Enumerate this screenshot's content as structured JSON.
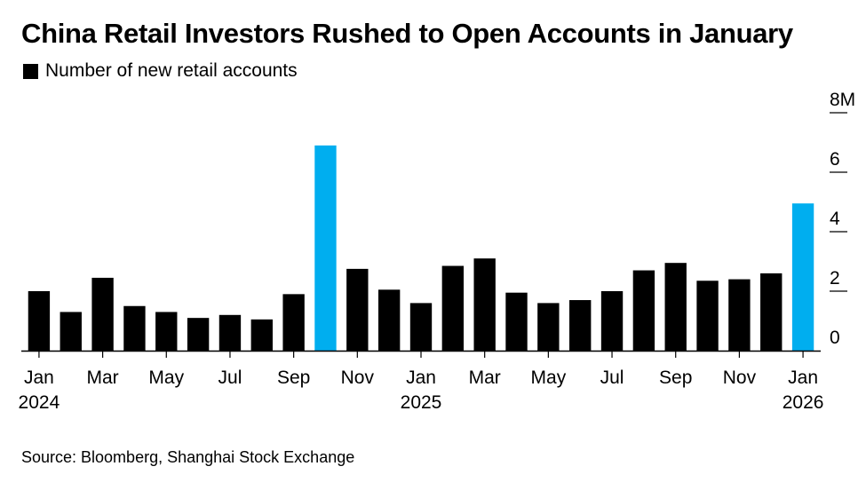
{
  "chart_data": {
    "type": "bar",
    "title": "China Retail Investors Rushed to Open Accounts in January",
    "legend": [
      "Number of new retail accounts"
    ],
    "xlabel": "",
    "ylabel": "",
    "ylim": [
      0,
      8
    ],
    "yticks": [
      {
        "value": 8,
        "label": "8M"
      },
      {
        "value": 6,
        "label": "6"
      },
      {
        "value": 4,
        "label": "4"
      },
      {
        "value": 2,
        "label": "2"
      },
      {
        "value": 0,
        "label": "0"
      }
    ],
    "categories": [
      "Jan 2024",
      "Feb 2024",
      "Mar 2024",
      "Apr 2024",
      "May 2024",
      "Jun 2024",
      "Jul 2024",
      "Aug 2024",
      "Sep 2024",
      "Oct 2024",
      "Nov 2024",
      "Dec 2024",
      "Jan 2025",
      "Feb 2025",
      "Mar 2025",
      "Apr 2025",
      "May 2025",
      "Jun 2025",
      "Jul 2025",
      "Aug 2025",
      "Sep 2025",
      "Oct 2025",
      "Nov 2025",
      "Dec 2025",
      "Jan 2026"
    ],
    "values": [
      2.0,
      1.3,
      2.45,
      1.5,
      1.3,
      1.1,
      1.2,
      1.05,
      1.9,
      6.9,
      2.75,
      2.05,
      1.6,
      2.85,
      3.1,
      1.95,
      1.6,
      1.7,
      2.0,
      2.7,
      2.95,
      2.35,
      2.4,
      2.6,
      4.95
    ],
    "highlight": [
      false,
      false,
      false,
      false,
      false,
      false,
      false,
      false,
      false,
      true,
      false,
      false,
      false,
      false,
      false,
      false,
      false,
      false,
      false,
      false,
      false,
      false,
      false,
      false,
      true
    ],
    "xtick_labels": [
      {
        "index": 0,
        "month": "Jan",
        "year": "2024"
      },
      {
        "index": 2,
        "month": "Mar",
        "year": ""
      },
      {
        "index": 4,
        "month": "May",
        "year": ""
      },
      {
        "index": 6,
        "month": "Jul",
        "year": ""
      },
      {
        "index": 8,
        "month": "Sep",
        "year": ""
      },
      {
        "index": 10,
        "month": "Nov",
        "year": ""
      },
      {
        "index": 12,
        "month": "Jan",
        "year": "2025"
      },
      {
        "index": 14,
        "month": "Mar",
        "year": ""
      },
      {
        "index": 16,
        "month": "May",
        "year": ""
      },
      {
        "index": 18,
        "month": "Jul",
        "year": ""
      },
      {
        "index": 20,
        "month": "Sep",
        "year": ""
      },
      {
        "index": 22,
        "month": "Nov",
        "year": ""
      },
      {
        "index": 24,
        "month": "Jan",
        "year": "2026"
      }
    ],
    "colors": {
      "default": "#000000",
      "highlight": "#00aeef"
    }
  },
  "source": "Source: Bloomberg, Shanghai Stock Exchange"
}
